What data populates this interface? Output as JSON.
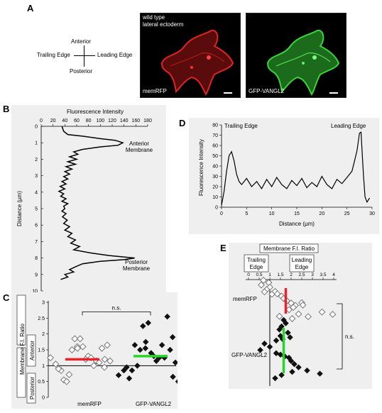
{
  "panels": {
    "a": {
      "label": "A",
      "axes": {
        "anterior": "Anterior",
        "posterior": "Posterior",
        "trailing": "Trailing Edge",
        "leading": "Leading Edge"
      },
      "image1": {
        "caption_top_1": "wild type",
        "caption_top_2": "lateral ectoderm",
        "caption_bottom": "memRFP",
        "color": "#d81e1e"
      },
      "image2": {
        "caption_bottom": "GFP-VANGL2",
        "color": "#2fc12f"
      }
    },
    "b": {
      "label": "B"
    },
    "c": {
      "label": "C"
    },
    "d": {
      "label": "D"
    },
    "e": {
      "label": "E"
    }
  },
  "chart_data": [
    {
      "panel": "B",
      "type": "line",
      "xlabel": "Fluorescence Intensity",
      "ylabel": "Distance (µm)",
      "xlim": [
        0,
        180
      ],
      "ylim": [
        0,
        10
      ],
      "xticks": [
        "0",
        "20",
        "40",
        "60",
        "80",
        "100",
        "120",
        "140",
        "160",
        "180"
      ],
      "yticks": [
        "0",
        "1",
        "2",
        "3",
        "4",
        "5",
        "6",
        "7",
        "8",
        "9",
        "10"
      ],
      "annotations": [
        "Anterior",
        "Membrane",
        "Posterior",
        "Membrane"
      ],
      "points": [
        [
          35,
          0
        ],
        [
          38,
          0.3
        ],
        [
          45,
          0.5
        ],
        [
          70,
          0.6
        ],
        [
          100,
          0.75
        ],
        [
          125,
          0.85
        ],
        [
          138,
          1.0
        ],
        [
          130,
          1.15
        ],
        [
          100,
          1.25
        ],
        [
          70,
          1.4
        ],
        [
          55,
          1.55
        ],
        [
          62,
          1.7
        ],
        [
          48,
          1.85
        ],
        [
          60,
          2.0
        ],
        [
          45,
          2.15
        ],
        [
          58,
          2.3
        ],
        [
          42,
          2.45
        ],
        [
          52,
          2.6
        ],
        [
          40,
          2.75
        ],
        [
          48,
          2.9
        ],
        [
          38,
          3.05
        ],
        [
          45,
          3.2
        ],
        [
          35,
          3.35
        ],
        [
          42,
          3.5
        ],
        [
          32,
          3.65
        ],
        [
          40,
          3.8
        ],
        [
          30,
          3.95
        ],
        [
          38,
          4.1
        ],
        [
          33,
          4.25
        ],
        [
          42,
          4.4
        ],
        [
          35,
          4.55
        ],
        [
          45,
          4.7
        ],
        [
          38,
          4.85
        ],
        [
          40,
          5.0
        ],
        [
          35,
          5.15
        ],
        [
          42,
          5.3
        ],
        [
          36,
          5.5
        ],
        [
          44,
          5.7
        ],
        [
          38,
          5.9
        ],
        [
          48,
          6.1
        ],
        [
          40,
          6.3
        ],
        [
          52,
          6.5
        ],
        [
          45,
          6.7
        ],
        [
          58,
          6.9
        ],
        [
          50,
          7.1
        ],
        [
          65,
          7.3
        ],
        [
          55,
          7.5
        ],
        [
          85,
          7.7
        ],
        [
          115,
          7.85
        ],
        [
          158,
          8.0
        ],
        [
          140,
          8.1
        ],
        [
          100,
          8.2
        ],
        [
          70,
          8.35
        ],
        [
          60,
          8.5
        ],
        [
          48,
          8.7
        ],
        [
          55,
          8.85
        ],
        [
          40,
          9.0
        ],
        [
          45,
          9.15
        ],
        [
          33,
          9.3
        ]
      ]
    },
    {
      "panel": "C",
      "type": "scatter",
      "ylabel": "Membrane F.I. Ratio",
      "ylabel_sub_top": "Anterior",
      "ylabel_sub_bottom": "Posterior",
      "ylim": [
        0,
        3
      ],
      "yticks": [
        "0",
        "0.5",
        "1",
        "1.5",
        "2",
        "2.5",
        "3"
      ],
      "categories": [
        "memRFP",
        "GFP-VANGL2"
      ],
      "significance": "n.s.",
      "series": [
        {
          "name": "memRFP",
          "color": "#e8232a",
          "mean": 1.2,
          "values": [
            1.25,
            1.05,
            0.85,
            0.9,
            0.55,
            0.72,
            0.5,
            1.5,
            1.6,
            1.85,
            1.85,
            1.55,
            1.6,
            1.3,
            1.2,
            1.25,
            1.15,
            1.0,
            1.1,
            0.95,
            1.55,
            1.65,
            1.2,
            1.15
          ]
        },
        {
          "name": "GFP-VANGL2",
          "color": "#28d628",
          "mean": 1.3,
          "values": [
            0.7,
            0.85,
            0.6,
            0.95,
            0.85,
            1.0,
            1.65,
            1.5,
            1.55,
            2.25,
            2.35,
            1.75,
            1.4,
            1.15,
            1.3,
            1.25,
            1.25,
            1.65,
            2.55,
            1.9,
            1.5,
            1.1,
            0.65,
            0.5
          ]
        }
      ]
    },
    {
      "panel": "D",
      "type": "line",
      "xlabel": "Distance (µm)",
      "ylabel": "Fluorescence Intensity",
      "xlim": [
        0,
        30
      ],
      "ylim": [
        0,
        80
      ],
      "xticks": [
        "0",
        "5",
        "10",
        "15",
        "20",
        "25",
        "30"
      ],
      "yticks": [
        "0",
        "10",
        "20",
        "30",
        "40",
        "50",
        "60",
        "70",
        "80"
      ],
      "annotations": [
        "Trailing Edge",
        "Leading Edge"
      ],
      "points": [
        [
          0,
          2
        ],
        [
          0.5,
          15
        ],
        [
          1,
          35
        ],
        [
          1.5,
          50
        ],
        [
          2,
          54
        ],
        [
          2.5,
          45
        ],
        [
          3,
          32
        ],
        [
          3.5,
          25
        ],
        [
          4,
          22
        ],
        [
          5,
          28
        ],
        [
          6,
          20
        ],
        [
          7,
          25
        ],
        [
          8,
          18
        ],
        [
          9,
          27
        ],
        [
          10,
          20
        ],
        [
          11,
          29
        ],
        [
          12,
          22
        ],
        [
          13,
          18
        ],
        [
          14,
          26
        ],
        [
          15,
          21
        ],
        [
          16,
          28
        ],
        [
          17,
          19
        ],
        [
          18,
          24
        ],
        [
          19,
          20
        ],
        [
          20,
          30
        ],
        [
          21,
          22
        ],
        [
          22,
          18
        ],
        [
          23,
          27
        ],
        [
          24,
          23
        ],
        [
          25,
          29
        ],
        [
          26,
          35
        ],
        [
          26.5,
          45
        ],
        [
          27,
          55
        ],
        [
          27.5,
          72
        ],
        [
          27.8,
          73
        ],
        [
          28,
          55
        ],
        [
          28.3,
          30
        ],
        [
          28.6,
          10
        ],
        [
          29,
          5
        ],
        [
          29.5,
          9
        ]
      ]
    },
    {
      "panel": "E",
      "type": "scatter",
      "title": "Membrane F.I. Ratio",
      "xlabel_left": "Trailing Edge",
      "xlabel_right": "Leading Edge",
      "xlim": [
        0,
        4
      ],
      "xticks": [
        "0",
        "0.5",
        "1",
        "1.5",
        "2",
        "2.5",
        "3",
        "3.5",
        "4"
      ],
      "significance": "n.s.",
      "series": [
        {
          "name": "memRFP",
          "color": "#e8232a",
          "mean": 1.75,
          "values": [
            0.7,
            0.95,
            0.6,
            1.0,
            0.85,
            0.75,
            1.1,
            1.25,
            1.35,
            1.55,
            1.65,
            1.8,
            2.0,
            2.2,
            2.5,
            2.55,
            2.1,
            1.9,
            3.45,
            3.95,
            2.8,
            2.35,
            1.45,
            2.05
          ]
        },
        {
          "name": "GFP-VANGL2",
          "color": "#28d628",
          "mean": 1.65,
          "values": [
            1.65,
            1.75,
            1.55,
            1.45,
            1.85,
            1.5,
            1.6,
            1.95,
            1.3,
            0.75,
            1.0,
            0.55,
            1.3,
            1.7,
            1.5,
            1.9,
            2.0,
            2.15,
            2.35,
            2.75,
            3.35,
            2.05,
            1.55,
            1.25
          ]
        }
      ]
    }
  ]
}
